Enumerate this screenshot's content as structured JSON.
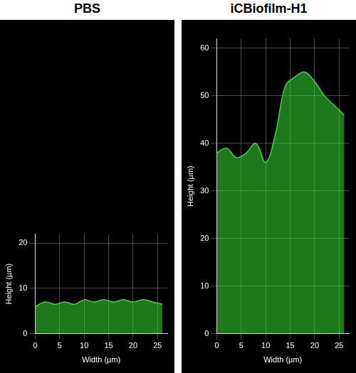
{
  "chart_data": [
    {
      "type": "area",
      "title": "PBS",
      "x_label": "Width (µm)",
      "y_label": "Height (µm)",
      "x": [
        0,
        2,
        4,
        6,
        8,
        10,
        12,
        14,
        16,
        18,
        20,
        22,
        24,
        26
      ],
      "values": [
        6,
        7,
        6.5,
        7,
        6.5,
        7.5,
        7,
        7.5,
        7,
        7.5,
        7,
        7.5,
        7,
        6.5
      ],
      "color": "#33dd33",
      "xlim": [
        0,
        27
      ],
      "ylim": [
        0,
        22
      ],
      "xticks": [
        0,
        5,
        10,
        15,
        20,
        25
      ],
      "yticks": [
        0,
        10,
        20
      ],
      "grid": true
    },
    {
      "type": "area",
      "title": "iCBiofilm-H1",
      "x_label": "Width (µm)",
      "y_label": "Height (µm)",
      "x": [
        0,
        2,
        4,
        6,
        8,
        10,
        12,
        14,
        16,
        18,
        20,
        22,
        24,
        26
      ],
      "values": [
        38,
        39,
        37,
        38,
        40,
        36,
        42,
        52,
        54,
        55,
        53,
        50,
        48,
        46
      ],
      "color": "#33dd33",
      "xlim": [
        0,
        27
      ],
      "ylim": [
        0,
        62
      ],
      "xticks": [
        0,
        5,
        10,
        15,
        20,
        25
      ],
      "yticks": [
        0,
        10,
        20,
        30,
        40,
        50,
        60
      ],
      "grid": true
    }
  ]
}
